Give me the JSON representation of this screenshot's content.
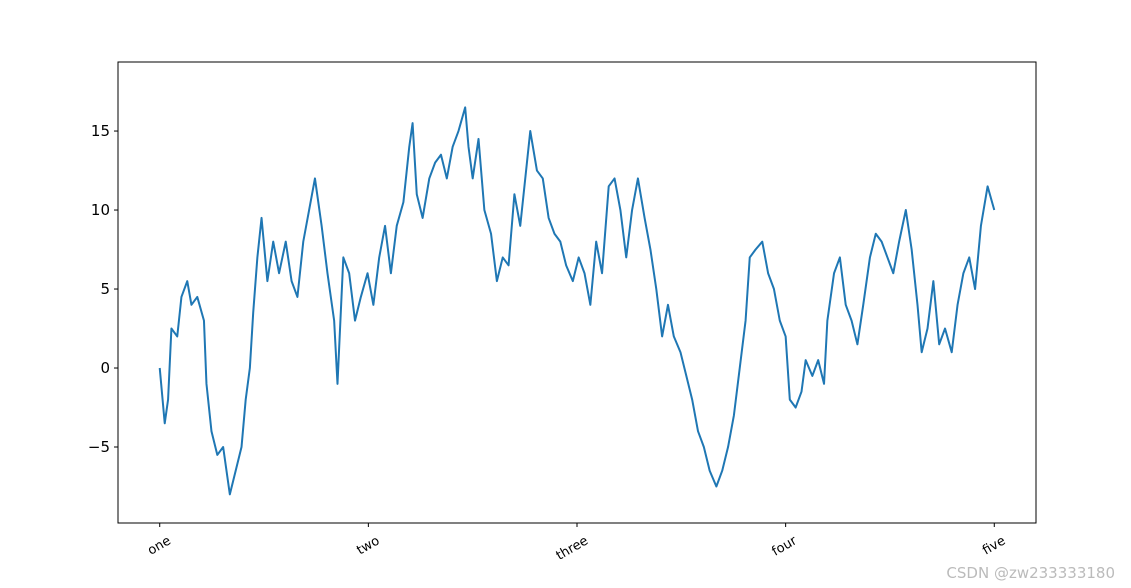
{
  "chart_data": {
    "type": "line",
    "x": [
      0,
      6,
      10,
      14,
      21,
      26,
      33,
      38,
      45,
      53,
      56,
      62,
      69,
      76,
      84,
      91,
      98,
      103,
      108,
      112,
      117,
      122,
      129,
      136,
      143,
      151,
      158,
      165,
      172,
      179,
      186,
      194,
      201,
      209,
      213,
      220,
      227,
      234,
      241,
      249,
      256,
      263,
      270,
      277,
      284,
      292,
      299,
      303,
      308,
      315,
      323,
      330,
      337,
      344,
      351,
      358,
      366,
      370,
      375,
      382,
      389,
      397,
      404,
      411,
      418,
      425,
      432,
      440,
      444,
      452,
      459,
      466,
      473,
      480,
      487,
      495,
      502,
      509,
      516,
      523,
      530,
      538,
      545,
      552,
      559,
      566,
      573,
      581,
      588,
      595,
      602,
      609,
      616,
      624,
      631,
      638,
      645,
      652,
      659,
      667,
      674,
      681,
      688,
      695,
      702,
      707,
      714,
      722,
      729,
      736,
      743,
      750,
      755,
      762,
      769,
      774,
      782,
      789,
      796,
      800,
      808,
      815,
      822,
      829,
      836,
      843,
      851,
      858,
      865,
      872,
      879,
      886,
      894,
      901,
      908,
      913,
      920,
      927,
      934,
      941,
      949,
      956,
      963,
      970,
      977,
      984,
      992,
      1000
    ],
    "series": [
      {
        "color": "#1f77b4",
        "values": [
          0,
          -3.5,
          -2,
          2.5,
          2,
          4.5,
          5.5,
          4,
          4.5,
          3,
          -1,
          -4,
          -5.5,
          -5,
          -8,
          -6.5,
          -5,
          -2,
          0,
          3.5,
          7,
          9.5,
          5.5,
          8,
          6,
          8,
          5.5,
          4.5,
          8,
          10,
          12,
          9,
          6,
          3,
          -1,
          7,
          6,
          3,
          4.5,
          6,
          4,
          7,
          9,
          6,
          9,
          10.5,
          14,
          15.5,
          11,
          9.5,
          12,
          13,
          13.5,
          12,
          14,
          15,
          16.5,
          14,
          12,
          14.5,
          10,
          8.5,
          5.5,
          7,
          6.5,
          11,
          9,
          13,
          15,
          12.5,
          12,
          9.5,
          8.5,
          8,
          6.5,
          5.5,
          7,
          6,
          4,
          8,
          6,
          11.5,
          12,
          10,
          7,
          10,
          12,
          9.5,
          7.5,
          5,
          2,
          4,
          2,
          1,
          -0.5,
          -2,
          -4,
          -5,
          -6.5,
          -7.5,
          -6.5,
          -5,
          -3,
          0,
          3,
          7,
          7.5,
          8,
          6,
          5,
          3,
          2,
          -2,
          -2.5,
          -1.5,
          0.5,
          -0.5,
          0.5,
          -1,
          3,
          6,
          7,
          4,
          3,
          1.5,
          4,
          7,
          8.5,
          8,
          7,
          6,
          8,
          10,
          7.5,
          4,
          1,
          2.5,
          5.5,
          1.5,
          2.5,
          1,
          4,
          6,
          7,
          5,
          9,
          11.5,
          10
        ]
      }
    ],
    "xlim": [
      -50,
      1050
    ],
    "xticks": [
      {
        "value": 0,
        "label": "one"
      },
      {
        "value": 250,
        "label": "two"
      },
      {
        "value": 500,
        "label": "three"
      },
      {
        "value": 750,
        "label": "four"
      },
      {
        "value": 1000,
        "label": "five"
      }
    ],
    "ylim": [
      -9.81,
      19.37
    ],
    "yticks": [
      {
        "value": -5,
        "label": "−5"
      },
      0,
      5,
      10,
      15
    ],
    "grid": false,
    "watermark": "CSDN @zw233333180"
  }
}
